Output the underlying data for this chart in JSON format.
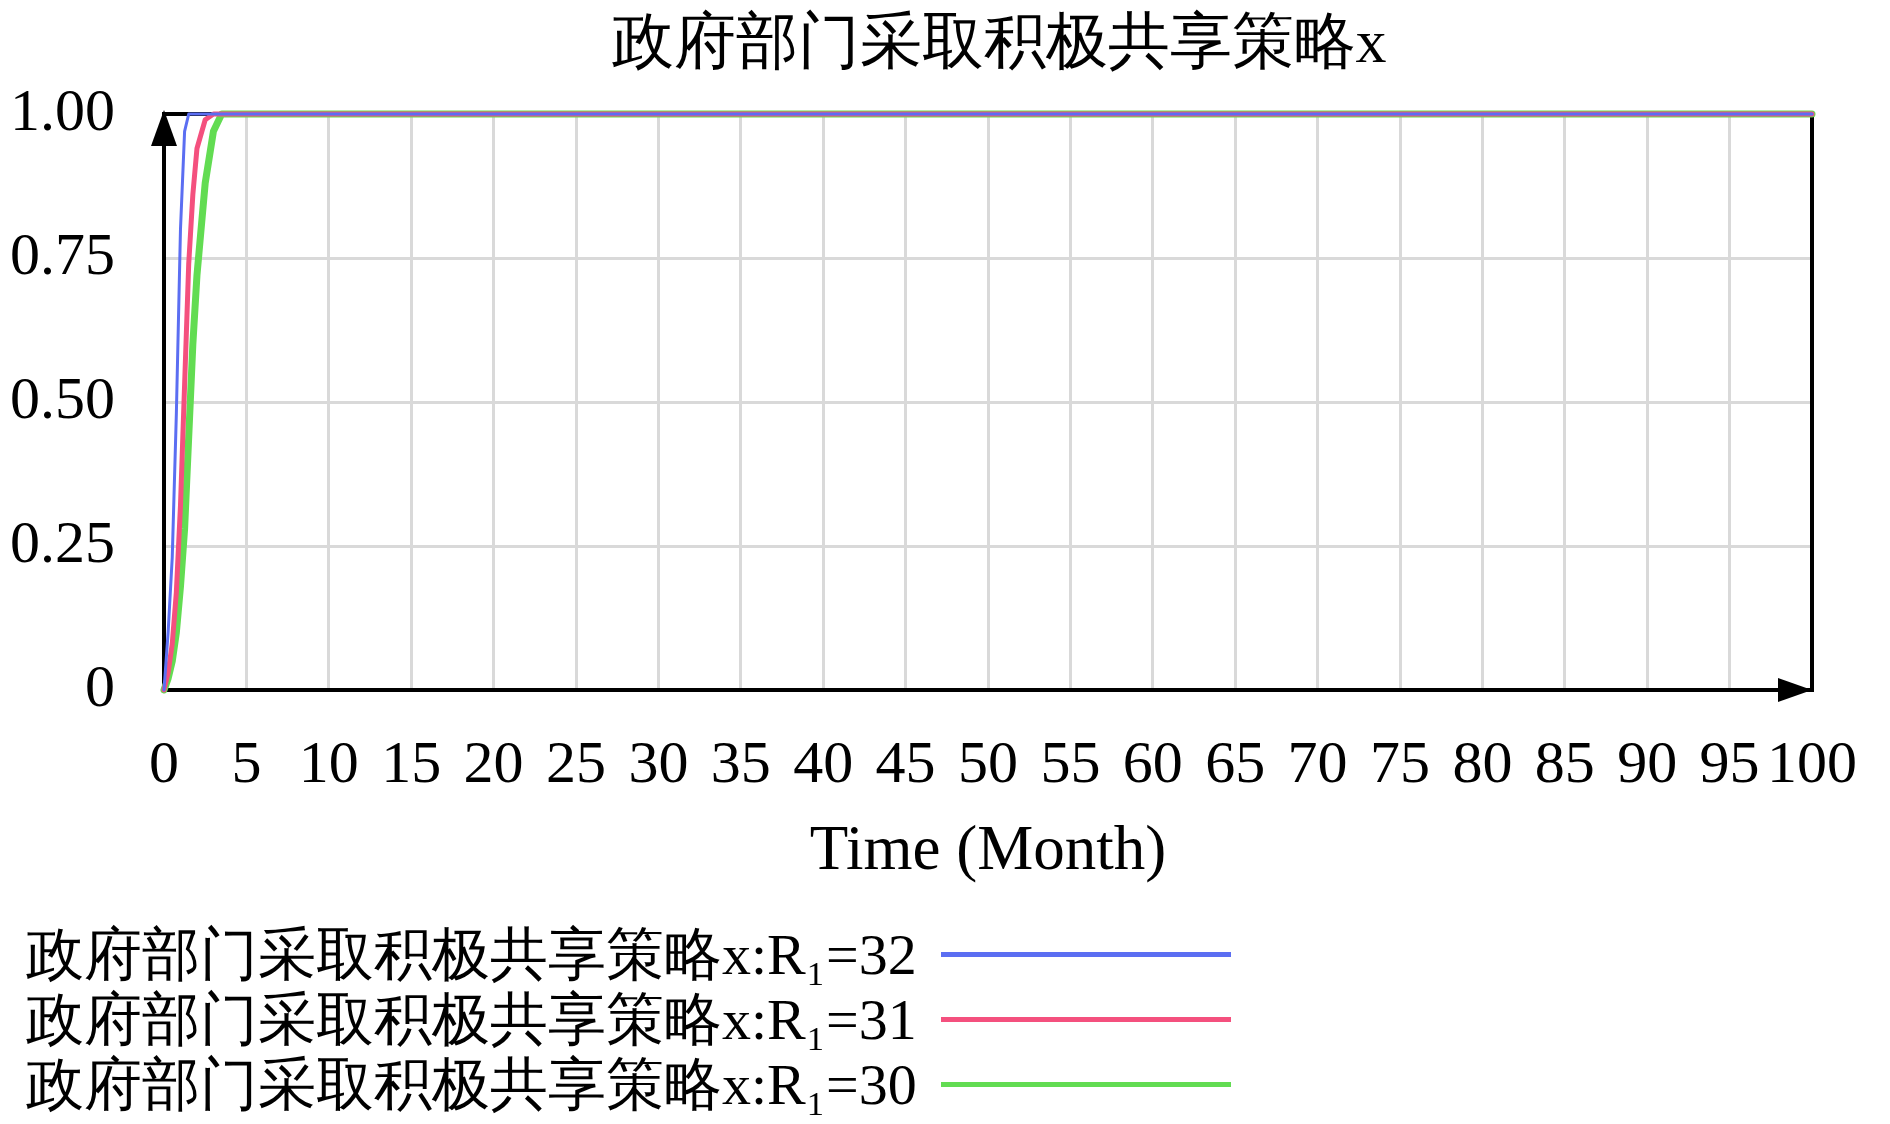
{
  "chart_data": {
    "type": "line",
    "title": "政府部门采取积极共享策略x",
    "xlabel": "Time (Month)",
    "x": [
      0,
      0.25,
      0.5,
      0.75,
      1,
      1.25,
      1.5,
      1.75,
      2,
      2.5,
      3,
      3.5,
      4,
      100
    ],
    "series": [
      {
        "name": "政府部门采取积极共享策略x:R₁=32",
        "color": "#5b6ef2",
        "values": [
          0,
          0.1,
          0.23,
          0.48,
          0.8,
          0.97,
          1,
          1,
          1,
          1,
          1,
          1,
          1,
          1
        ]
      },
      {
        "name": "政府部门采取积极共享策略x:R₁=31",
        "color": "#f4507e",
        "values": [
          0,
          0.03,
          0.08,
          0.17,
          0.32,
          0.53,
          0.74,
          0.86,
          0.94,
          0.99,
          1,
          1,
          1,
          1
        ]
      },
      {
        "name": "政府部门采取积极共享策略x:R₁=30",
        "color": "#62dc52",
        "values": [
          0,
          0.02,
          0.05,
          0.1,
          0.18,
          0.28,
          0.44,
          0.6,
          0.72,
          0.88,
          0.97,
          1,
          1,
          1
        ]
      }
    ],
    "xlim": [
      0,
      100
    ],
    "xticks": [
      0,
      5,
      10,
      15,
      20,
      25,
      30,
      35,
      40,
      45,
      50,
      55,
      60,
      65,
      70,
      75,
      80,
      85,
      90,
      95,
      100
    ],
    "ylim": [
      0,
      1
    ],
    "yticks": [
      0,
      0.25,
      {
        "value": 0.5,
        "label": "0.50"
      },
      0.75,
      {
        "value": 1,
        "label": "1.00"
      }
    ],
    "grid": true,
    "legend": "bottom"
  }
}
